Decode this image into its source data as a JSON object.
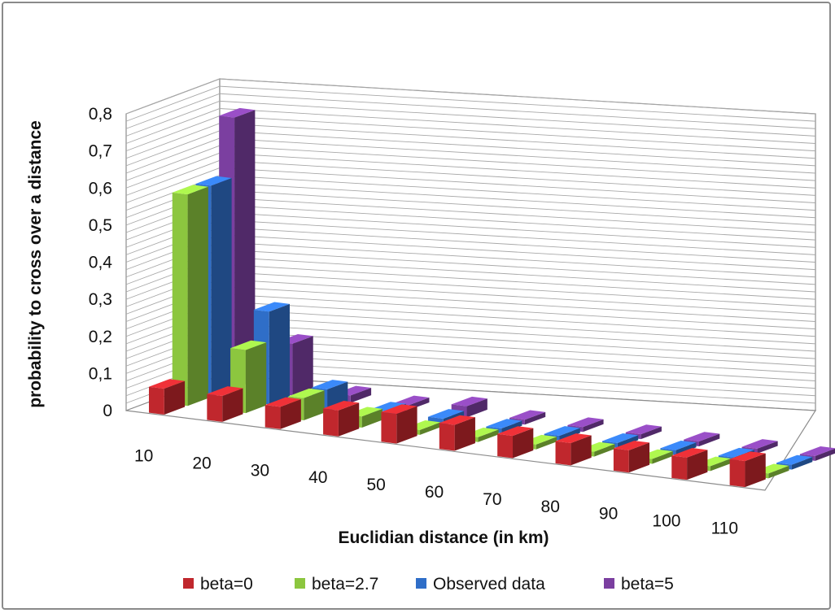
{
  "chart_data": {
    "type": "bar",
    "subtype": "3d-clustered-column",
    "xlabel": "Euclidian distance (in km)",
    "ylabel": "probability to cross over a distance",
    "categories": [
      "10",
      "20",
      "30",
      "40",
      "50",
      "60",
      "70",
      "80",
      "90",
      "100",
      "110"
    ],
    "y_ticks": [
      "0",
      "0,1",
      "0,2",
      "0,3",
      "0,4",
      "0,5",
      "0,6",
      "0,7",
      "0,8"
    ],
    "ylim": [
      0,
      0.8
    ],
    "grid": true,
    "legend_position": "bottom",
    "series": [
      {
        "name": "beta=0",
        "color": "#c0272d",
        "values": [
          0.07,
          0.07,
          0.06,
          0.07,
          0.08,
          0.07,
          0.06,
          0.06,
          0.06,
          0.06,
          0.07
        ]
      },
      {
        "name": "beta=2.7",
        "color": "#8cc63f",
        "values": [
          0.57,
          0.17,
          0.06,
          0.03,
          0.01,
          0.01,
          0.01,
          0.01,
          0.01,
          0.01,
          0.01
        ]
      },
      {
        "name": "Observed data",
        "color": "#2f6ec8",
        "values": [
          0.57,
          0.25,
          0.06,
          0.02,
          0.02,
          0.01,
          0.01,
          0.01,
          0.01,
          0.01,
          0.01
        ]
      },
      {
        "name": "beta=5",
        "color": "#7b3fa0",
        "values": [
          0.73,
          0.14,
          0.02,
          0.01,
          0.03,
          0.01,
          0.01,
          0.01,
          0.01,
          0.01,
          0.01
        ]
      }
    ]
  }
}
